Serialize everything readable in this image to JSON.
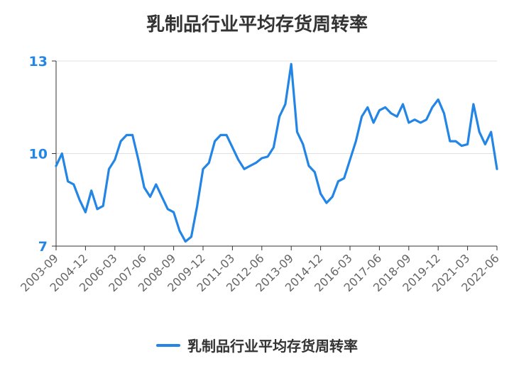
{
  "chart_data": {
    "type": "line",
    "title": "乳制品行业平均存货周转率",
    "x_tick_labels": [
      "2003-09",
      "2004-12",
      "2006-03",
      "2007-06",
      "2008-09",
      "2009-12",
      "2011-03",
      "2012-06",
      "2013-09",
      "2014-12",
      "2016-03",
      "2017-06",
      "2018-09",
      "2019-12",
      "2021-03",
      "2022-06"
    ],
    "y_ticks": [
      7,
      10,
      13
    ],
    "ylim": [
      7,
      13
    ],
    "grid": true,
    "legend_position": "bottom",
    "series": [
      {
        "name": "乳制品行业平均存货周转率",
        "color": "#2385e5",
        "x": [
          "2003-09",
          "2003-12",
          "2004-03",
          "2004-06",
          "2004-09",
          "2004-12",
          "2005-03",
          "2005-06",
          "2005-09",
          "2005-12",
          "2006-03",
          "2006-06",
          "2006-09",
          "2006-12",
          "2007-03",
          "2007-06",
          "2007-09",
          "2007-12",
          "2008-03",
          "2008-06",
          "2008-09",
          "2008-12",
          "2009-03",
          "2009-06",
          "2009-09",
          "2009-12",
          "2010-03",
          "2010-06",
          "2010-09",
          "2010-12",
          "2011-03",
          "2011-06",
          "2011-09",
          "2011-12",
          "2012-03",
          "2012-06",
          "2012-09",
          "2012-12",
          "2013-03",
          "2013-06",
          "2013-09",
          "2013-12",
          "2014-03",
          "2014-06",
          "2014-09",
          "2014-12",
          "2015-03",
          "2015-06",
          "2015-09",
          "2015-12",
          "2016-03",
          "2016-06",
          "2016-09",
          "2016-12",
          "2017-03",
          "2017-06",
          "2017-09",
          "2017-12",
          "2018-03",
          "2018-06",
          "2018-09",
          "2018-12",
          "2019-03",
          "2019-06",
          "2019-09",
          "2019-12",
          "2020-03",
          "2020-06",
          "2020-09",
          "2020-12",
          "2021-03",
          "2021-06",
          "2021-09",
          "2021-12",
          "2022-03",
          "2022-06"
        ],
        "values": [
          9.6,
          10.0,
          9.1,
          9.0,
          8.5,
          8.1,
          8.8,
          8.2,
          8.3,
          9.5,
          9.8,
          10.4,
          10.6,
          10.6,
          9.8,
          8.9,
          8.6,
          9.0,
          8.6,
          8.2,
          8.1,
          7.5,
          7.15,
          7.3,
          8.3,
          9.5,
          9.7,
          10.4,
          10.6,
          10.6,
          10.2,
          9.8,
          9.5,
          9.6,
          9.7,
          9.85,
          9.9,
          10.2,
          11.2,
          11.6,
          12.9,
          10.7,
          10.3,
          9.6,
          9.4,
          8.7,
          8.4,
          8.6,
          9.1,
          9.2,
          9.8,
          10.4,
          11.2,
          11.5,
          11.0,
          11.4,
          11.5,
          11.3,
          11.2,
          11.6,
          11.0,
          11.1,
          11.0,
          11.1,
          11.5,
          11.75,
          11.3,
          10.4,
          10.4,
          10.25,
          10.3,
          11.6,
          10.7,
          10.3,
          10.7,
          9.5
        ]
      }
    ]
  }
}
